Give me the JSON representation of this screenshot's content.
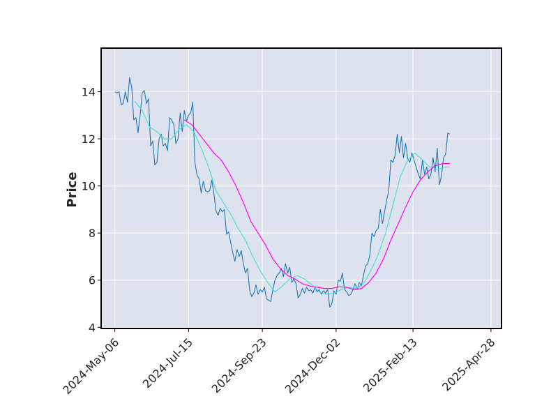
{
  "chart_data": {
    "type": "line",
    "title": "",
    "xlabel": "",
    "ylabel": "Price",
    "x_range": [
      "2024-04-23",
      "2025-05-08"
    ],
    "ylim": [
      3.95,
      15.85
    ],
    "x_ticks": [
      "2024-May-06",
      "2024-Jul-15",
      "2024-Sep-23",
      "2024-Dec-02",
      "2025-Feb-13",
      "2025-Apr-28"
    ],
    "y_ticks": [
      4,
      6,
      8,
      10,
      12,
      14
    ],
    "grid": true,
    "legend": "none",
    "colors": {
      "plot_background": "#dde2ee",
      "grid": "#ffffff",
      "frame": "#000000",
      "close": "#1f77b4",
      "ma_short": "#40e0d0",
      "ma_long": "#ff00ff"
    },
    "series": [
      {
        "key": "close",
        "points": [
          [
            "2024-05-06",
            14.0
          ],
          [
            "2024-05-08",
            13.95
          ],
          [
            "2024-05-10",
            14.0
          ],
          [
            "2024-05-12",
            13.45
          ],
          [
            "2024-05-14",
            13.5
          ],
          [
            "2024-05-16",
            14.0
          ],
          [
            "2024-05-18",
            13.55
          ],
          [
            "2024-05-20",
            14.6
          ],
          [
            "2024-05-22",
            14.2
          ],
          [
            "2024-05-24",
            12.8
          ],
          [
            "2024-05-26",
            12.9
          ],
          [
            "2024-05-28",
            12.25
          ],
          [
            "2024-05-30",
            13.0
          ],
          [
            "2024-06-01",
            13.95
          ],
          [
            "2024-06-03",
            14.05
          ],
          [
            "2024-06-05",
            13.5
          ],
          [
            "2024-06-07",
            13.7
          ],
          [
            "2024-06-09",
            11.7
          ],
          [
            "2024-06-11",
            11.9
          ],
          [
            "2024-06-13",
            10.9
          ],
          [
            "2024-06-15",
            11.0
          ],
          [
            "2024-06-17",
            12.0
          ],
          [
            "2024-06-19",
            12.2
          ],
          [
            "2024-06-21",
            11.7
          ],
          [
            "2024-06-23",
            11.8
          ],
          [
            "2024-06-25",
            11.5
          ],
          [
            "2024-06-27",
            12.9
          ],
          [
            "2024-06-29",
            12.8
          ],
          [
            "2024-07-01",
            12.6
          ],
          [
            "2024-07-03",
            11.8
          ],
          [
            "2024-07-05",
            12.0
          ],
          [
            "2024-07-07",
            13.1
          ],
          [
            "2024-07-09",
            12.3
          ],
          [
            "2024-07-11",
            13.2
          ],
          [
            "2024-07-13",
            12.75
          ],
          [
            "2024-07-15",
            13.0
          ],
          [
            "2024-07-17",
            13.1
          ],
          [
            "2024-07-19",
            13.55
          ],
          [
            "2024-07-21",
            11.0
          ],
          [
            "2024-07-23",
            10.45
          ],
          [
            "2024-07-25",
            10.3
          ],
          [
            "2024-07-27",
            9.7
          ],
          [
            "2024-07-29",
            10.2
          ],
          [
            "2024-07-31",
            9.8
          ],
          [
            "2024-08-02",
            9.75
          ],
          [
            "2024-08-04",
            9.8
          ],
          [
            "2024-08-06",
            10.25
          ],
          [
            "2024-08-08",
            9.7
          ],
          [
            "2024-08-10",
            8.95
          ],
          [
            "2024-08-12",
            8.75
          ],
          [
            "2024-08-14",
            9.05
          ],
          [
            "2024-08-16",
            8.9
          ],
          [
            "2024-08-18",
            9.0
          ],
          [
            "2024-08-20",
            7.95
          ],
          [
            "2024-08-22",
            8.05
          ],
          [
            "2024-08-24",
            7.6
          ],
          [
            "2024-08-26",
            7.15
          ],
          [
            "2024-08-28",
            6.8
          ],
          [
            "2024-08-30",
            7.3
          ],
          [
            "2024-09-01",
            7.0
          ],
          [
            "2024-09-03",
            7.25
          ],
          [
            "2024-09-05",
            6.7
          ],
          [
            "2024-09-07",
            6.3
          ],
          [
            "2024-09-09",
            6.5
          ],
          [
            "2024-09-11",
            5.55
          ],
          [
            "2024-09-13",
            5.3
          ],
          [
            "2024-09-15",
            5.45
          ],
          [
            "2024-09-17",
            5.8
          ],
          [
            "2024-09-19",
            5.4
          ],
          [
            "2024-09-21",
            5.6
          ],
          [
            "2024-09-23",
            5.5
          ],
          [
            "2024-09-25",
            5.7
          ],
          [
            "2024-09-27",
            5.2
          ],
          [
            "2024-09-29",
            5.15
          ],
          [
            "2024-10-01",
            5.1
          ],
          [
            "2024-10-03",
            5.6
          ],
          [
            "2024-10-05",
            6.0
          ],
          [
            "2024-10-07",
            6.2
          ],
          [
            "2024-10-09",
            6.3
          ],
          [
            "2024-10-11",
            6.5
          ],
          [
            "2024-10-13",
            6.15
          ],
          [
            "2024-10-15",
            6.7
          ],
          [
            "2024-10-17",
            6.3
          ],
          [
            "2024-10-19",
            6.55
          ],
          [
            "2024-10-21",
            5.9
          ],
          [
            "2024-10-23",
            6.05
          ],
          [
            "2024-10-25",
            5.85
          ],
          [
            "2024-10-27",
            5.25
          ],
          [
            "2024-10-29",
            5.4
          ],
          [
            "2024-10-31",
            5.65
          ],
          [
            "2024-11-02",
            5.45
          ],
          [
            "2024-11-04",
            5.7
          ],
          [
            "2024-11-06",
            5.55
          ],
          [
            "2024-11-08",
            5.6
          ],
          [
            "2024-11-10",
            5.45
          ],
          [
            "2024-11-12",
            5.7
          ],
          [
            "2024-11-14",
            5.5
          ],
          [
            "2024-11-16",
            5.6
          ],
          [
            "2024-11-18",
            5.4
          ],
          [
            "2024-11-20",
            5.55
          ],
          [
            "2024-11-22",
            5.45
          ],
          [
            "2024-11-24",
            5.6
          ],
          [
            "2024-11-26",
            4.85
          ],
          [
            "2024-11-28",
            5.0
          ],
          [
            "2024-11-30",
            5.55
          ],
          [
            "2024-12-02",
            5.4
          ],
          [
            "2024-12-04",
            6.0
          ],
          [
            "2024-12-06",
            5.95
          ],
          [
            "2024-12-08",
            6.3
          ],
          [
            "2024-12-10",
            5.6
          ],
          [
            "2024-12-12",
            5.5
          ],
          [
            "2024-12-14",
            5.35
          ],
          [
            "2024-12-16",
            5.4
          ],
          [
            "2024-12-18",
            5.6
          ],
          [
            "2024-12-20",
            5.85
          ],
          [
            "2024-12-22",
            5.6
          ],
          [
            "2024-12-24",
            5.9
          ],
          [
            "2024-12-26",
            5.75
          ],
          [
            "2024-12-28",
            6.2
          ],
          [
            "2024-12-30",
            6.6
          ],
          [
            "2025-01-01",
            6.7
          ],
          [
            "2025-01-03",
            7.05
          ],
          [
            "2025-01-05",
            8.0
          ],
          [
            "2025-01-07",
            7.85
          ],
          [
            "2025-01-09",
            8.1
          ],
          [
            "2025-01-11",
            8.2
          ],
          [
            "2025-01-13",
            9.0
          ],
          [
            "2025-01-15",
            8.4
          ],
          [
            "2025-01-17",
            8.9
          ],
          [
            "2025-01-19",
            9.4
          ],
          [
            "2025-01-21",
            9.8
          ],
          [
            "2025-01-23",
            11.1
          ],
          [
            "2025-01-25",
            11.0
          ],
          [
            "2025-01-27",
            11.3
          ],
          [
            "2025-01-29",
            12.2
          ],
          [
            "2025-01-31",
            11.4
          ],
          [
            "2025-02-02",
            12.1
          ],
          [
            "2025-02-04",
            11.2
          ],
          [
            "2025-02-06",
            11.8
          ],
          [
            "2025-02-08",
            11.15
          ],
          [
            "2025-02-10",
            11.0
          ],
          [
            "2025-02-12",
            11.4
          ],
          [
            "2025-02-14",
            11.1
          ],
          [
            "2025-02-16",
            10.8
          ],
          [
            "2025-02-18",
            10.5
          ],
          [
            "2025-02-20",
            10.3
          ],
          [
            "2025-02-22",
            11.1
          ],
          [
            "2025-02-24",
            10.5
          ],
          [
            "2025-02-26",
            10.8
          ],
          [
            "2025-02-28",
            10.3
          ],
          [
            "2025-03-02",
            10.5
          ],
          [
            "2025-03-04",
            11.2
          ],
          [
            "2025-03-06",
            10.6
          ],
          [
            "2025-03-08",
            11.6
          ],
          [
            "2025-03-10",
            10.05
          ],
          [
            "2025-03-12",
            10.4
          ],
          [
            "2025-03-14",
            11.2
          ],
          [
            "2025-03-16",
            11.35
          ],
          [
            "2025-03-18",
            12.25
          ],
          [
            "2025-03-20",
            12.2
          ]
        ]
      },
      {
        "key": "ma_short",
        "points": [
          [
            "2024-05-25",
            13.6
          ],
          [
            "2024-06-01",
            13.2
          ],
          [
            "2024-06-08",
            12.5
          ],
          [
            "2024-06-15",
            12.3
          ],
          [
            "2024-06-22",
            12.0
          ],
          [
            "2024-06-29",
            12.0
          ],
          [
            "2024-07-06",
            12.4
          ],
          [
            "2024-07-13",
            12.6
          ],
          [
            "2024-07-20",
            12.3
          ],
          [
            "2024-07-27",
            11.6
          ],
          [
            "2024-08-03",
            10.8
          ],
          [
            "2024-08-10",
            9.8
          ],
          [
            "2024-08-17",
            9.3
          ],
          [
            "2024-08-24",
            8.8
          ],
          [
            "2024-08-31",
            8.2
          ],
          [
            "2024-09-07",
            7.7
          ],
          [
            "2024-09-14",
            7.0
          ],
          [
            "2024-09-21",
            6.4
          ],
          [
            "2024-09-28",
            5.9
          ],
          [
            "2024-10-05",
            5.5
          ],
          [
            "2024-10-12",
            5.75
          ],
          [
            "2024-10-19",
            6.05
          ],
          [
            "2024-10-26",
            6.2
          ],
          [
            "2024-11-02",
            6.05
          ],
          [
            "2024-11-09",
            5.8
          ],
          [
            "2024-11-16",
            5.5
          ],
          [
            "2024-11-23",
            5.4
          ],
          [
            "2024-11-30",
            5.45
          ],
          [
            "2024-12-07",
            5.6
          ],
          [
            "2024-12-14",
            5.7
          ],
          [
            "2024-12-21",
            5.65
          ],
          [
            "2024-12-28",
            5.85
          ],
          [
            "2025-01-04",
            6.4
          ],
          [
            "2025-01-11",
            7.1
          ],
          [
            "2025-01-18",
            8.0
          ],
          [
            "2025-01-25",
            9.2
          ],
          [
            "2025-02-01",
            10.4
          ],
          [
            "2025-02-08",
            11.1
          ],
          [
            "2025-02-15",
            11.4
          ],
          [
            "2025-02-22",
            11.1
          ],
          [
            "2025-03-01",
            10.8
          ],
          [
            "2025-03-08",
            10.7
          ],
          [
            "2025-03-15",
            10.8
          ],
          [
            "2025-03-20",
            10.8
          ]
        ]
      },
      {
        "key": "ma_long",
        "points": [
          [
            "2024-07-11",
            12.8
          ],
          [
            "2024-07-18",
            12.6
          ],
          [
            "2024-07-25",
            12.2
          ],
          [
            "2024-08-01",
            11.8
          ],
          [
            "2024-08-08",
            11.4
          ],
          [
            "2024-08-15",
            11.1
          ],
          [
            "2024-08-22",
            10.6
          ],
          [
            "2024-08-29",
            10.0
          ],
          [
            "2024-09-05",
            9.3
          ],
          [
            "2024-09-12",
            8.5
          ],
          [
            "2024-09-19",
            8.0
          ],
          [
            "2024-09-26",
            7.5
          ],
          [
            "2024-10-03",
            6.9
          ],
          [
            "2024-10-10",
            6.5
          ],
          [
            "2024-10-17",
            6.2
          ],
          [
            "2024-10-24",
            6.05
          ],
          [
            "2024-10-31",
            5.85
          ],
          [
            "2024-11-07",
            5.75
          ],
          [
            "2024-11-14",
            5.7
          ],
          [
            "2024-11-21",
            5.65
          ],
          [
            "2024-11-28",
            5.65
          ],
          [
            "2024-12-05",
            5.72
          ],
          [
            "2024-12-12",
            5.7
          ],
          [
            "2024-12-19",
            5.6
          ],
          [
            "2024-12-26",
            5.65
          ],
          [
            "2025-01-02",
            5.9
          ],
          [
            "2025-01-09",
            6.3
          ],
          [
            "2025-01-16",
            6.9
          ],
          [
            "2025-01-23",
            7.7
          ],
          [
            "2025-01-30",
            8.4
          ],
          [
            "2025-02-06",
            9.1
          ],
          [
            "2025-02-13",
            9.75
          ],
          [
            "2025-02-20",
            10.25
          ],
          [
            "2025-02-27",
            10.6
          ],
          [
            "2025-03-06",
            10.85
          ],
          [
            "2025-03-13",
            10.95
          ],
          [
            "2025-03-20",
            10.95
          ]
        ]
      }
    ]
  }
}
